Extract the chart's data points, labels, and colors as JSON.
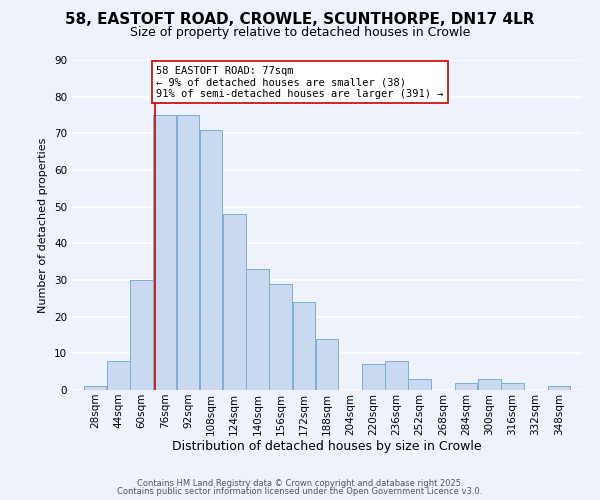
{
  "title_line1": "58, EASTOFT ROAD, CROWLE, SCUNTHORPE, DN17 4LR",
  "title_line2": "Size of property relative to detached houses in Crowle",
  "xlabel": "Distribution of detached houses by size in Crowle",
  "ylabel": "Number of detached properties",
  "bar_edges": [
    28,
    44,
    60,
    76,
    92,
    108,
    124,
    140,
    156,
    172,
    188,
    204,
    220,
    236,
    252,
    268,
    284,
    300,
    316,
    332,
    348
  ],
  "bar_heights": [
    1,
    8,
    30,
    75,
    75,
    71,
    48,
    33,
    29,
    24,
    14,
    0,
    7,
    8,
    3,
    0,
    2,
    3,
    2,
    0,
    1
  ],
  "bar_color": "#c9d9f0",
  "bar_edgecolor": "#7bafd4",
  "ylim": [
    0,
    90
  ],
  "yticks": [
    0,
    10,
    20,
    30,
    40,
    50,
    60,
    70,
    80,
    90
  ],
  "property_value": 77,
  "vline_color": "#cc0000",
  "annotation_line1": "58 EASTOFT ROAD: 77sqm",
  "annotation_line2": "← 9% of detached houses are smaller (38)",
  "annotation_line3": "91% of semi-detached houses are larger (391) →",
  "footer_line1": "Contains HM Land Registry data © Crown copyright and database right 2025.",
  "footer_line2": "Contains public sector information licensed under the Open Government Licence v3.0.",
  "background_color": "#eef2fb",
  "plot_bg_color": "#eef2fb",
  "grid_color": "#ffffff",
  "tick_label_size": 7.5,
  "title_fontsize": 11,
  "subtitle_fontsize": 9,
  "ylabel_fontsize": 8,
  "xlabel_fontsize": 9
}
